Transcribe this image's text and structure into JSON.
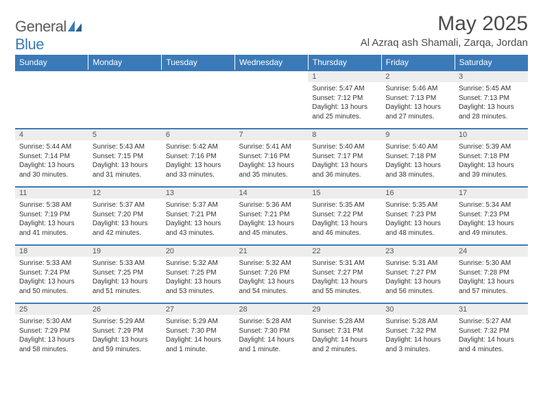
{
  "brand": {
    "name_a": "General",
    "name_b": "Blue"
  },
  "title": "May 2025",
  "location": "Al Azraq ash Shamali, Zarqa, Jordan",
  "colors": {
    "header_bg": "#3a7ab8",
    "header_text": "#ffffff",
    "daynum_bg": "#ededed",
    "border": "#3a7ab8",
    "text": "#333333"
  },
  "day_headers": [
    "Sunday",
    "Monday",
    "Tuesday",
    "Wednesday",
    "Thursday",
    "Friday",
    "Saturday"
  ],
  "weeks": [
    [
      null,
      null,
      null,
      null,
      {
        "n": "1",
        "sr": "5:47 AM",
        "ss": "7:12 PM",
        "dl": "13 hours and 25 minutes."
      },
      {
        "n": "2",
        "sr": "5:46 AM",
        "ss": "7:13 PM",
        "dl": "13 hours and 27 minutes."
      },
      {
        "n": "3",
        "sr": "5:45 AM",
        "ss": "7:13 PM",
        "dl": "13 hours and 28 minutes."
      }
    ],
    [
      {
        "n": "4",
        "sr": "5:44 AM",
        "ss": "7:14 PM",
        "dl": "13 hours and 30 minutes."
      },
      {
        "n": "5",
        "sr": "5:43 AM",
        "ss": "7:15 PM",
        "dl": "13 hours and 31 minutes."
      },
      {
        "n": "6",
        "sr": "5:42 AM",
        "ss": "7:16 PM",
        "dl": "13 hours and 33 minutes."
      },
      {
        "n": "7",
        "sr": "5:41 AM",
        "ss": "7:16 PM",
        "dl": "13 hours and 35 minutes."
      },
      {
        "n": "8",
        "sr": "5:40 AM",
        "ss": "7:17 PM",
        "dl": "13 hours and 36 minutes."
      },
      {
        "n": "9",
        "sr": "5:40 AM",
        "ss": "7:18 PM",
        "dl": "13 hours and 38 minutes."
      },
      {
        "n": "10",
        "sr": "5:39 AM",
        "ss": "7:18 PM",
        "dl": "13 hours and 39 minutes."
      }
    ],
    [
      {
        "n": "11",
        "sr": "5:38 AM",
        "ss": "7:19 PM",
        "dl": "13 hours and 41 minutes."
      },
      {
        "n": "12",
        "sr": "5:37 AM",
        "ss": "7:20 PM",
        "dl": "13 hours and 42 minutes."
      },
      {
        "n": "13",
        "sr": "5:37 AM",
        "ss": "7:21 PM",
        "dl": "13 hours and 43 minutes."
      },
      {
        "n": "14",
        "sr": "5:36 AM",
        "ss": "7:21 PM",
        "dl": "13 hours and 45 minutes."
      },
      {
        "n": "15",
        "sr": "5:35 AM",
        "ss": "7:22 PM",
        "dl": "13 hours and 46 minutes."
      },
      {
        "n": "16",
        "sr": "5:35 AM",
        "ss": "7:23 PM",
        "dl": "13 hours and 48 minutes."
      },
      {
        "n": "17",
        "sr": "5:34 AM",
        "ss": "7:23 PM",
        "dl": "13 hours and 49 minutes."
      }
    ],
    [
      {
        "n": "18",
        "sr": "5:33 AM",
        "ss": "7:24 PM",
        "dl": "13 hours and 50 minutes."
      },
      {
        "n": "19",
        "sr": "5:33 AM",
        "ss": "7:25 PM",
        "dl": "13 hours and 51 minutes."
      },
      {
        "n": "20",
        "sr": "5:32 AM",
        "ss": "7:25 PM",
        "dl": "13 hours and 53 minutes."
      },
      {
        "n": "21",
        "sr": "5:32 AM",
        "ss": "7:26 PM",
        "dl": "13 hours and 54 minutes."
      },
      {
        "n": "22",
        "sr": "5:31 AM",
        "ss": "7:27 PM",
        "dl": "13 hours and 55 minutes."
      },
      {
        "n": "23",
        "sr": "5:31 AM",
        "ss": "7:27 PM",
        "dl": "13 hours and 56 minutes."
      },
      {
        "n": "24",
        "sr": "5:30 AM",
        "ss": "7:28 PM",
        "dl": "13 hours and 57 minutes."
      }
    ],
    [
      {
        "n": "25",
        "sr": "5:30 AM",
        "ss": "7:29 PM",
        "dl": "13 hours and 58 minutes."
      },
      {
        "n": "26",
        "sr": "5:29 AM",
        "ss": "7:29 PM",
        "dl": "13 hours and 59 minutes."
      },
      {
        "n": "27",
        "sr": "5:29 AM",
        "ss": "7:30 PM",
        "dl": "14 hours and 1 minute."
      },
      {
        "n": "28",
        "sr": "5:28 AM",
        "ss": "7:30 PM",
        "dl": "14 hours and 1 minute."
      },
      {
        "n": "29",
        "sr": "5:28 AM",
        "ss": "7:31 PM",
        "dl": "14 hours and 2 minutes."
      },
      {
        "n": "30",
        "sr": "5:28 AM",
        "ss": "7:32 PM",
        "dl": "14 hours and 3 minutes."
      },
      {
        "n": "31",
        "sr": "5:27 AM",
        "ss": "7:32 PM",
        "dl": "14 hours and 4 minutes."
      }
    ]
  ],
  "labels": {
    "sunrise": "Sunrise: ",
    "sunset": "Sunset: ",
    "daylight": "Daylight: "
  }
}
